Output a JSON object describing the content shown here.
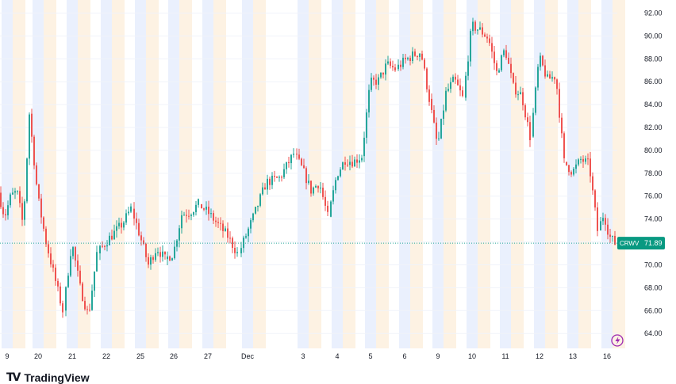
{
  "chart_data": {
    "type": "candlestick",
    "ticker": "CRWV",
    "last_price": "71.89",
    "y_axis": {
      "min": 62.7,
      "max": 93.0,
      "ticks": [
        "92.00",
        "90.00",
        "88.00",
        "86.00",
        "84.00",
        "82.00",
        "80.00",
        "78.00",
        "76.00",
        "74.00",
        "72.00",
        "70.00",
        "68.00",
        "66.00",
        "64.00"
      ]
    },
    "x_labels": [
      "9",
      "20",
      "21",
      "22",
      "25",
      "26",
      "27",
      "Dec",
      "3",
      "4",
      "5",
      "6",
      "9",
      "10",
      "11",
      "12",
      "13",
      "16"
    ],
    "sessions": [
      {
        "label": "9",
        "closes": [
          76.3,
          74.2,
          76.0,
          76.4,
          73.4,
          83.2
        ]
      },
      {
        "label": "20",
        "closes": [
          83.2,
          76.0,
          72.0,
          69.0,
          66.0
        ]
      },
      {
        "label": "21",
        "closes": [
          66.0,
          72.0,
          68.0,
          65.5,
          71.0
        ]
      },
      {
        "label": "22",
        "closes": [
          71.0,
          72.0,
          72.8,
          73.6,
          74.9
        ]
      },
      {
        "label": "25",
        "closes": [
          74.9,
          72.5,
          70.0,
          71.5,
          70.5
        ]
      },
      {
        "label": "26",
        "closes": [
          70.5,
          71.0,
          74.4,
          74.6,
          75.3
        ]
      },
      {
        "label": "27",
        "closes": [
          75.3,
          74.5,
          73.5,
          72.5,
          71.0
        ]
      },
      {
        "label": "Dec",
        "closes": [
          71.0,
          74.0,
          77.2,
          77.6,
          79.7
        ]
      },
      {
        "label": "3",
        "closes": [
          79.7,
          78.3,
          76.5,
          77.2,
          74.2
        ]
      },
      {
        "label": "4",
        "closes": [
          74.2,
          77.9,
          79.2,
          79.0,
          79.5
        ]
      },
      {
        "label": "5",
        "closes": [
          79.5,
          85.9,
          86.1,
          87.5,
          87.1
        ]
      },
      {
        "label": "6",
        "closes": [
          87.1,
          87.8,
          88.3,
          88.6,
          84.5
        ]
      },
      {
        "label": "9",
        "closes": [
          84.5,
          80.3,
          85.0,
          86.2,
          84.6
        ]
      },
      {
        "label": "10",
        "closes": [
          84.6,
          90.9,
          90.5,
          89.8,
          86.8
        ]
      },
      {
        "label": "11",
        "closes": [
          86.8,
          88.9,
          85.5,
          84.8,
          81.2
        ]
      },
      {
        "label": "12",
        "closes": [
          81.2,
          88.1,
          86.2,
          86.5,
          79.0
        ]
      },
      {
        "label": "13",
        "closes": [
          79.0,
          78.1,
          79.2,
          78.8,
          73.0
        ]
      },
      {
        "label": "16",
        "closes": [
          73.0,
          74.5,
          72.5,
          71.89
        ]
      }
    ]
  },
  "brand": {
    "logo": "TV",
    "name": "TradingView"
  },
  "colors": {
    "up": "#26a69a",
    "down": "#ef5350",
    "premarket": "#eaf0fd",
    "afterhours": "#fdf2e3",
    "last_line": "#26a69a",
    "badge": "#089981",
    "grid": "#f0f3fa",
    "text": "#131722",
    "flash": "#9c27b0"
  }
}
